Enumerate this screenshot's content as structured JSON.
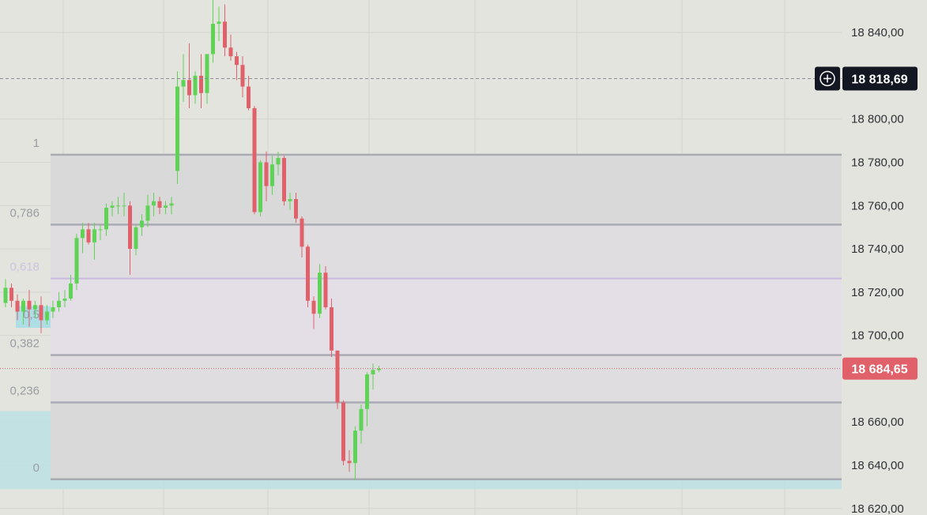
{
  "chart_data": {
    "type": "candlestick",
    "ylim": [
      18617,
      18855
    ],
    "price_axis_ticks": [
      "18 840,00",
      "18 800,00",
      "18 780,00",
      "18 760,00",
      "18 740,00",
      "18 720,00",
      "18 700,00",
      "18 660,00",
      "18 640,00",
      "18 620,00"
    ],
    "crosshair": {
      "price": 18818.69,
      "label": "18 818,69"
    },
    "last_price": {
      "price": 18684.65,
      "label": "18 684,65"
    },
    "fib_levels": [
      {
        "label": "1",
        "price": 18783.5
      },
      {
        "label": "0,786",
        "price": 18751.2
      },
      {
        "label": "0,618",
        "price": 18726.3
      },
      {
        "label": "0,5",
        "price": 18708.6
      },
      {
        "label": "0,382",
        "price": 18690.9
      },
      {
        "label": "0,236",
        "price": 18669.0
      },
      {
        "label": "0",
        "price": 18633.5
      }
    ],
    "zones": [
      {
        "name": "supply-zone",
        "top": 18713.5,
        "bottom": 18703.5,
        "color": "#a6dce6"
      },
      {
        "name": "demand-zone",
        "top": 18665.0,
        "bottom": 18629.0,
        "color": "#bde0e3"
      }
    ],
    "candles": [
      [
        18715,
        18726,
        18713,
        18722
      ],
      [
        18722,
        18724,
        18713,
        18716
      ],
      [
        18716,
        18719,
        18707,
        18711
      ],
      [
        18711,
        18717,
        18705,
        18716
      ],
      [
        18716,
        18721,
        18704,
        18712
      ],
      [
        18712,
        18716,
        18708,
        18714
      ],
      [
        18714,
        18718,
        18701,
        18707
      ],
      [
        18707,
        18714,
        18705,
        18711
      ],
      [
        18711,
        18716,
        18708,
        18713
      ],
      [
        18713,
        18720,
        18711,
        18716
      ],
      [
        18716,
        18721,
        18713,
        18717
      ],
      [
        18717,
        18728,
        18716,
        18724
      ],
      [
        18724,
        18747,
        18721,
        18745
      ],
      [
        18745,
        18752,
        18738,
        18749
      ],
      [
        18749,
        18752,
        18742,
        18743
      ],
      [
        18743,
        18752,
        18735,
        18749
      ],
      [
        18749,
        18751,
        18744,
        18749
      ],
      [
        18749,
        18761,
        18746,
        18759
      ],
      [
        18759,
        18762,
        18755,
        18760
      ],
      [
        18760,
        18764,
        18756,
        18760
      ],
      [
        18760,
        18766,
        18755,
        18760
      ],
      [
        18760,
        18762,
        18728,
        18740
      ],
      [
        18740,
        18751,
        18737,
        18750
      ],
      [
        18750,
        18756,
        18746,
        18753
      ],
      [
        18753,
        18765,
        18750,
        18760
      ],
      [
        18760,
        18766,
        18755,
        18762
      ],
      [
        18762,
        18764,
        18756,
        18759
      ],
      [
        18759,
        18762,
        18756,
        18760
      ],
      [
        18760,
        18764,
        18756,
        18761
      ],
      [
        18776,
        18822,
        18770,
        18815
      ],
      [
        18815,
        18830,
        18808,
        18818
      ],
      [
        18818,
        18835,
        18805,
        18811
      ],
      [
        18811,
        18822,
        18807,
        18820
      ],
      [
        18820,
        18830,
        18805,
        18812
      ],
      [
        18812,
        18829,
        18807,
        18830
      ],
      [
        18830,
        18855,
        18826,
        18844
      ],
      [
        18844,
        18852,
        18836,
        18845
      ],
      [
        18845,
        18853,
        18829,
        18833
      ],
      [
        18833,
        18839,
        18827,
        18829
      ],
      [
        18829,
        18831,
        18818,
        18825
      ],
      [
        18825,
        18829,
        18810,
        18815
      ],
      [
        18815,
        18820,
        18804,
        18805
      ],
      [
        18805,
        18806,
        18756,
        18757
      ],
      [
        18757,
        18781,
        18755,
        18780
      ],
      [
        18780,
        18785,
        18762,
        18769
      ],
      [
        18769,
        18783,
        18765,
        18779
      ],
      [
        18779,
        18785,
        18774,
        18782
      ],
      [
        18782,
        18783,
        18760,
        18762
      ],
      [
        18762,
        18766,
        18758,
        18763
      ],
      [
        18763,
        18766,
        18752,
        18754
      ],
      [
        18754,
        18755,
        18736,
        18741
      ],
      [
        18741,
        18742,
        18713,
        18716
      ],
      [
        18716,
        18718,
        18703,
        18710
      ],
      [
        18710,
        18733,
        18708,
        18729
      ],
      [
        18729,
        18732,
        18712,
        18713
      ],
      [
        18713,
        18717,
        18690,
        18693
      ],
      [
        18693,
        18693,
        18666,
        18669
      ],
      [
        18669,
        18670,
        18640,
        18642
      ],
      [
        18642,
        18647,
        18637,
        18641
      ],
      [
        18641,
        18658,
        18633,
        18656
      ],
      [
        18656,
        18668,
        18650,
        18666
      ],
      [
        18666,
        18683,
        18658,
        18682
      ],
      [
        18682,
        18687,
        18675,
        18684
      ],
      [
        18684,
        18686,
        18683,
        18684.65
      ]
    ],
    "up_color": "#5fd355",
    "down_color": "#e0616a",
    "gridlines": true
  }
}
